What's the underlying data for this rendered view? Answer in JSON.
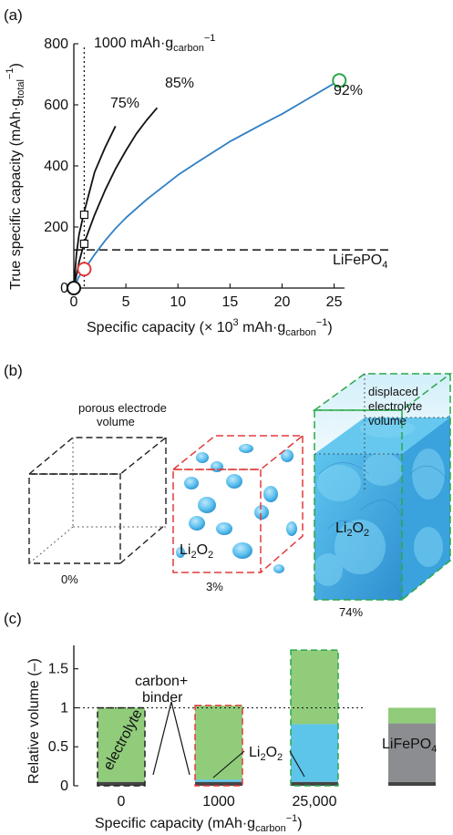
{
  "panels": {
    "a": "(a)",
    "b": "(b)",
    "c": "(c)"
  },
  "chart_data": [
    {
      "type": "line",
      "panel": "a",
      "xlabel": "Specific capacity (× 10³ mAh·g_carbon⁻¹)",
      "ylabel": "True specific capacity (mAh·g_total⁻¹)",
      "xlim": [
        0,
        26
      ],
      "ylim": [
        0,
        800
      ],
      "xticks": [
        0,
        5,
        10,
        15,
        20,
        25
      ],
      "yticks": [
        0,
        200,
        400,
        600,
        800
      ],
      "series": [
        {
          "label": "75%",
          "color": "#111111",
          "x": [
            0,
            0.25,
            0.5,
            1,
            2,
            3,
            4
          ],
          "y": [
            0,
            110,
            175,
            250,
            380,
            460,
            530
          ]
        },
        {
          "label": "85%",
          "color": "#111111",
          "x": [
            0,
            0.5,
            1,
            2,
            3,
            4,
            5,
            6,
            7,
            8
          ],
          "y": [
            0,
            85,
            148,
            240,
            320,
            390,
            450,
            505,
            550,
            590
          ]
        },
        {
          "label": "92%",
          "color": "#2f7fc4",
          "x": [
            0,
            0.5,
            1,
            2,
            3,
            4,
            5,
            7,
            10,
            12,
            15,
            18,
            20,
            22,
            25.5
          ],
          "y": [
            0,
            38,
            60,
            110,
            155,
            195,
            230,
            290,
            370,
            415,
            480,
            535,
            570,
            610,
            680
          ]
        }
      ],
      "markers": [
        {
          "shape": "square",
          "x": 1,
          "y": 240
        },
        {
          "shape": "square",
          "x": 1,
          "y": 145
        },
        {
          "shape": "circle",
          "color": "#e23b3b",
          "x": 1,
          "y": 62
        },
        {
          "shape": "circle",
          "color": "#2aa84a",
          "x": 25.5,
          "y": 680
        },
        {
          "shape": "circle",
          "color": "#111111",
          "x": 0,
          "y": 0
        }
      ],
      "vline": {
        "x": 1,
        "label": "1000 mAh·g_carbon⁻¹"
      },
      "hline": {
        "y": 125,
        "label": "LiFePO₄"
      }
    },
    {
      "type": "bar",
      "panel": "c",
      "xlabel": "Specific capacity (mAh·g_carbon⁻¹)",
      "ylabel": "Relative volume (–)",
      "ylim": [
        0,
        1.8
      ],
      "yticks": [
        0,
        0.5,
        1,
        1.5
      ],
      "categories": [
        "0",
        "1000",
        "25,000",
        ""
      ],
      "series": [
        {
          "name": "carbon+binder",
          "color": "#444444",
          "values": [
            0.05,
            0.05,
            0.05,
            0.05
          ]
        },
        {
          "name": "LiFePO₄",
          "color": "#8b8d91",
          "values": [
            0,
            0,
            0,
            0.75
          ]
        },
        {
          "name": "Li₂O₂",
          "color": "#5ec5ea",
          "values": [
            0,
            0.03,
            0.74,
            0
          ]
        },
        {
          "name": "electrolyte",
          "color": "#90cc7a",
          "values": [
            0.95,
            0.95,
            0.95,
            0.2
          ]
        }
      ],
      "bar_outline": [
        "#222222",
        "#e23b3b",
        "#2aa84a",
        ""
      ],
      "reference_line": 1
    }
  ],
  "cubes": [
    {
      "caption": "0%",
      "label": "porous electrode volume",
      "color": "#222222"
    },
    {
      "caption": "3%",
      "label": "Li₂O₂",
      "color": "#e23b3b"
    },
    {
      "caption": "74%",
      "label": "Li₂O₂",
      "note": "displaced electrolyte volume",
      "color": "#2aa84a"
    }
  ],
  "annotations": {
    "a_vline": "1000 mAh·g",
    "a_vline_sub": "carbon",
    "a_vline_sup": "−1",
    "a_hline_main": "LiFePO",
    "a_hline_sub": "4",
    "a_s75": "75%",
    "a_s85": "85%",
    "a_s92": "92%",
    "a_ylabel_main": "True specific capacity (mAh·g",
    "a_ylabel_sub": "total",
    "a_ylabel_sup": "−1",
    "a_ylabel_end": ")",
    "a_xlabel_main": "Specific capacity (× 10",
    "a_xlabel_sup3": "3",
    "a_xlabel_mid": " mAh·g",
    "a_xlabel_sub": "carbon",
    "a_xlabel_sup": "−1",
    "a_xlabel_end": ")",
    "b_porous_1": "porous electrode",
    "b_porous_2": "volume",
    "b_displaced_1": "displaced",
    "b_displaced_2": "electrolyte",
    "b_displaced_3": "volume",
    "b_li2o2_main": "Li",
    "b_li2o2_sub": "2",
    "b_li2o2_end": "O",
    "b_li2o2_sub2": "2",
    "b_cap_0": "0%",
    "b_cap_3": "3%",
    "b_cap_74": "74%",
    "c_electrolyte": "electrolyte",
    "c_carbon_1": "carbon+",
    "c_carbon_2": "binder",
    "c_li2o2_main": "Li",
    "c_li2o2_sub": "2",
    "c_li2o2_end": "O",
    "c_li2o2_sub2": "2",
    "c_lifepo_main": "LiFePO",
    "c_lifepo_sub": "4",
    "c_ylabel": "Relative volume (–)",
    "c_xlabel_main": "Specific capacity (mAh·g",
    "c_xlabel_sub": "carbon",
    "c_xlabel_sup": "−1",
    "c_xlabel_end": ")"
  }
}
